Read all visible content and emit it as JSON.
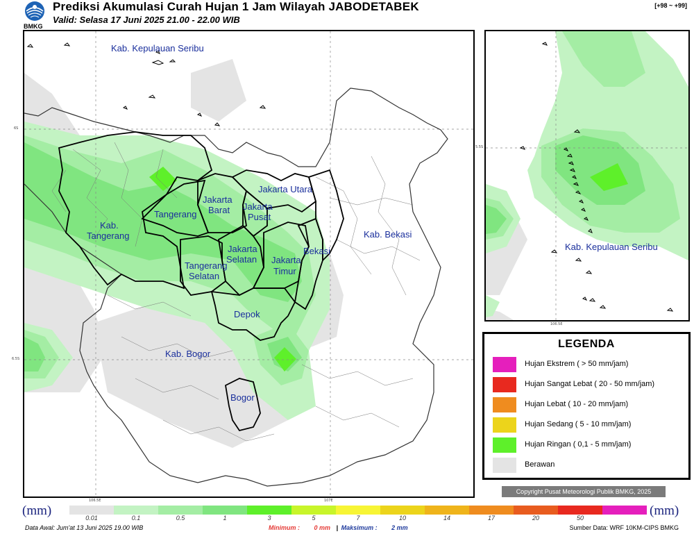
{
  "header": {
    "title": "Prediksi Akumulasi Curah Hujan 1 Jam Wilayah JABODETABEK",
    "subtitle": "Valid: Selasa 17 Juni 2025 21.00 - 22.00 WIB",
    "coord_range": "[+98 ~ +99]",
    "logo_text": "BMKG"
  },
  "main_map": {
    "labels": {
      "kab_kepulauan_seribu": "Kab. Kepulauan Seribu",
      "jakarta_utara": "Jakarta Utara",
      "jakarta_barat_1": "Jakarta",
      "jakarta_barat_2": "Barat",
      "jakarta_pusat_1": "Jakarta",
      "jakarta_pusat_2": "Pusat",
      "tangerang": "Tangerang",
      "kab_tangerang_1": "Kab.",
      "kab_tangerang_2": "Tangerang",
      "jakarta_selatan_1": "Jakarta",
      "jakarta_selatan_2": "Selatan",
      "jakarta_timur_1": "Jakarta",
      "jakarta_timur_2": "Timur",
      "bekasi": "Bekasi",
      "kab_bekasi": "Kab. Bekasi",
      "tangerang_selatan_1": "Tangerang",
      "tangerang_selatan_2": "Selatan",
      "depok": "Depok",
      "kab_bogor": "Kab. Bogor",
      "bogor": "Bogor"
    },
    "ticks": {
      "lat_top": "6S",
      "lat_bottom": "6.5S",
      "lon_left": "106.5E",
      "lon_right": "107E"
    }
  },
  "inset_map": {
    "label": "Kab. Kepulauan Seribu",
    "tick_lat": "5.5S",
    "tick_lon": "106.5E"
  },
  "legend": {
    "title": "LEGENDA",
    "items": [
      {
        "label": "Hujan Ekstrem ( > 50 mm/jam)",
        "color": "#e51fbc"
      },
      {
        "label": "Hujan Sangat Lebat ( 20 - 50 mm/jam)",
        "color": "#e8291f"
      },
      {
        "label": "Hujan Lebat ( 10 - 20 mm/jam)",
        "color": "#ef8c1f"
      },
      {
        "label": "Hujan Sedang ( 5 - 10 mm/jam)",
        "color": "#ecd41b"
      },
      {
        "label": "Hujan Ringan ( 0,1 - 5 mm/jam)",
        "color": "#5ef02a"
      },
      {
        "label": "Berawan",
        "color": "#e4e4e4"
      }
    ]
  },
  "copyright": "Copyright Pusat Meteorologi Publik BMKG, 2025",
  "colorbar": {
    "unit": "(mm)",
    "ticks": [
      "0.01",
      "0.1",
      "0.5",
      "1",
      "3",
      "5",
      "7",
      "10",
      "14",
      "17",
      "20",
      "50"
    ],
    "colors": [
      "#e4e4e4",
      "#c3f3c3",
      "#a4eda4",
      "#80e580",
      "#5ef02a",
      "#c8f52a",
      "#f7f535",
      "#ecd41b",
      "#efb41b",
      "#ef8c1f",
      "#e85c1f",
      "#e8291f",
      "#e51fbc"
    ]
  },
  "footer": {
    "data_awal": "Data Awal: Jum'at 13 Juni 2025 19.00 WIB",
    "minimum_label": "Minimum :",
    "minimum_value": "0 mm",
    "separator": "|",
    "maksimum_label": "Maksimum :",
    "maksimum_value": "2 mm",
    "source": "Sumber Data: WRF 10KM-CIPS BMKG"
  },
  "colors": {
    "cloudy": "#e4e4e4",
    "light_rain_1": "#c3f3c3",
    "light_rain_2": "#a4eda4",
    "light_rain_3": "#80e580",
    "light_rain_4": "#5ef02a",
    "label_blue": "#1a2f9c"
  }
}
